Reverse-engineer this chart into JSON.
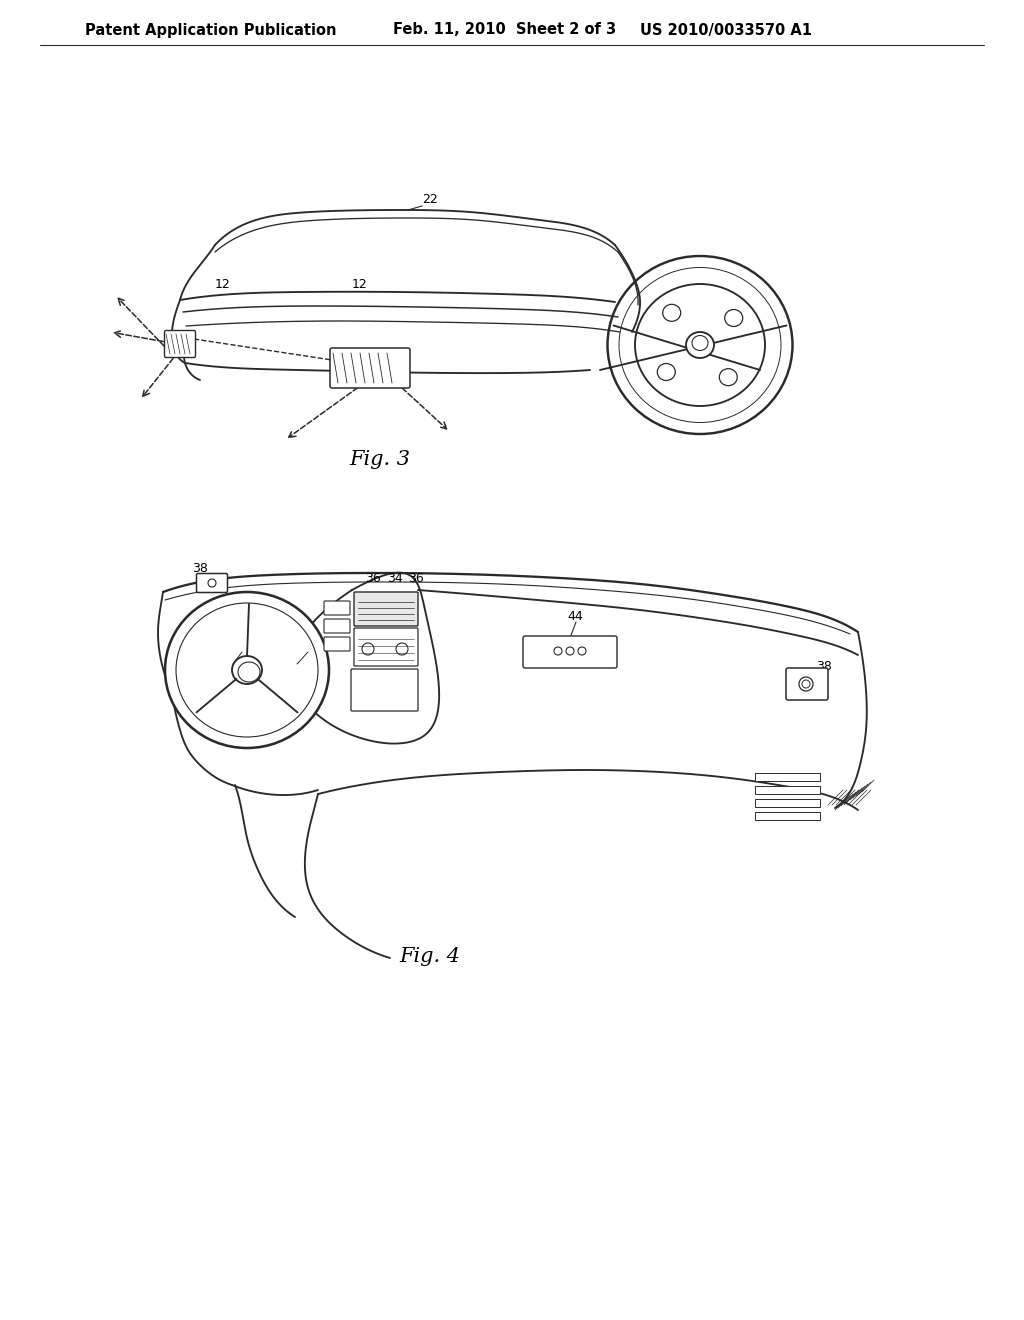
{
  "header_left": "Patent Application Publication",
  "header_mid": "Feb. 11, 2010  Sheet 2 of 3",
  "header_right": "US 2010/0033570 A1",
  "fig3_label": "Fig. 3",
  "fig4_label": "Fig. 4",
  "bg_color": "#ffffff",
  "line_color": "#2a2a2a",
  "text_color": "#000000",
  "header_fontsize": 10.5,
  "label_fontsize": 15,
  "ref_fontsize": 9
}
